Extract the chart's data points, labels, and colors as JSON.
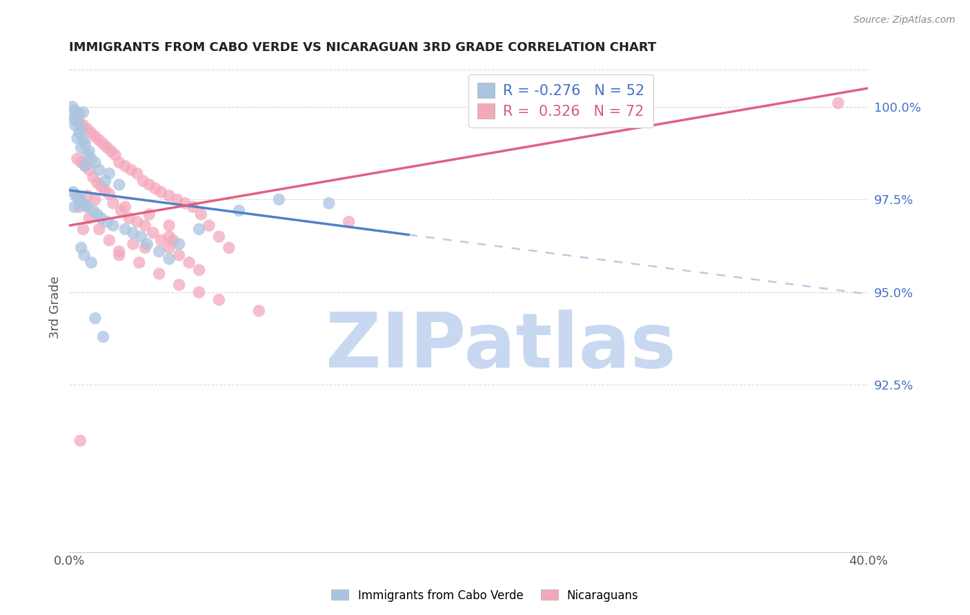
{
  "title": "IMMIGRANTS FROM CABO VERDE VS NICARAGUAN 3RD GRADE CORRELATION CHART",
  "source": "Source: ZipAtlas.com",
  "ylabel": "3rd Grade",
  "xmin": 0.0,
  "xmax": 40.0,
  "ymin": 88.0,
  "ymax": 101.2,
  "yticks": [
    92.5,
    95.0,
    97.5,
    100.0
  ],
  "ytick_labels": [
    "92.5%",
    "95.0%",
    "97.5%",
    "100.0%"
  ],
  "xticks": [
    0.0,
    5.0,
    10.0,
    15.0,
    20.0,
    25.0,
    30.0,
    35.0,
    40.0
  ],
  "xtick_labels": [
    "0.0%",
    "",
    "",
    "",
    "",
    "",
    "",
    "",
    "40.0%"
  ],
  "blue_R": -0.276,
  "blue_N": 52,
  "pink_R": 0.326,
  "pink_N": 72,
  "blue_color": "#aac4e0",
  "pink_color": "#f4a8bc",
  "blue_line_color": "#5080c8",
  "pink_line_color": "#e06080",
  "blue_dash_color": "#aac4e0",
  "blue_scatter_x": [
    0.15,
    0.3,
    0.5,
    0.7,
    0.2,
    0.4,
    0.3,
    0.6,
    0.5,
    0.4,
    0.7,
    0.8,
    0.6,
    1.0,
    0.9,
    1.1,
    1.3,
    0.8,
    1.5,
    2.0,
    1.8,
    2.5,
    0.2,
    0.35,
    0.45,
    0.55,
    0.5,
    0.65,
    0.8,
    0.9,
    1.2,
    1.4,
    1.6,
    1.9,
    2.2,
    2.8,
    3.2,
    3.6,
    3.9,
    4.5,
    5.0,
    5.5,
    6.5,
    8.5,
    10.5,
    13.0,
    0.25,
    0.6,
    0.75,
    1.1,
    1.3,
    1.7
  ],
  "blue_scatter_y": [
    100.0,
    99.9,
    99.8,
    99.85,
    99.7,
    99.6,
    99.5,
    99.4,
    99.3,
    99.15,
    99.1,
    99.0,
    98.9,
    98.8,
    98.7,
    98.6,
    98.5,
    98.4,
    98.3,
    98.2,
    98.0,
    97.9,
    97.7,
    97.6,
    97.55,
    97.5,
    97.45,
    97.4,
    97.35,
    97.3,
    97.2,
    97.1,
    97.0,
    96.9,
    96.8,
    96.7,
    96.6,
    96.5,
    96.3,
    96.1,
    95.9,
    96.3,
    96.7,
    97.2,
    97.5,
    97.4,
    97.3,
    96.2,
    96.0,
    95.8,
    94.3,
    93.8
  ],
  "pink_scatter_x": [
    0.3,
    0.5,
    0.7,
    0.9,
    1.1,
    1.3,
    1.5,
    1.7,
    1.9,
    2.1,
    2.3,
    2.5,
    2.8,
    3.1,
    3.4,
    3.7,
    4.0,
    4.3,
    4.6,
    5.0,
    5.4,
    5.8,
    6.2,
    6.6,
    0.4,
    0.6,
    0.8,
    1.0,
    1.2,
    1.4,
    1.6,
    1.8,
    2.0,
    2.2,
    2.6,
    3.0,
    3.4,
    3.8,
    4.2,
    4.6,
    5.0,
    5.5,
    6.0,
    6.5,
    7.0,
    7.5,
    8.0,
    0.5,
    1.0,
    1.5,
    2.0,
    2.5,
    3.5,
    4.5,
    5.5,
    6.5,
    7.5,
    9.5,
    14.0,
    5.0,
    2.5,
    3.8,
    5.2,
    4.0,
    2.8,
    3.2,
    0.7,
    1.3,
    0.9,
    0.55,
    38.5,
    5.0
  ],
  "pink_scatter_y": [
    99.7,
    99.6,
    99.5,
    99.4,
    99.3,
    99.2,
    99.1,
    99.0,
    98.9,
    98.8,
    98.7,
    98.5,
    98.4,
    98.3,
    98.2,
    98.0,
    97.9,
    97.8,
    97.7,
    97.6,
    97.5,
    97.4,
    97.3,
    97.1,
    98.6,
    98.5,
    98.4,
    98.3,
    98.1,
    97.95,
    97.85,
    97.75,
    97.65,
    97.4,
    97.2,
    97.0,
    96.9,
    96.8,
    96.6,
    96.4,
    96.2,
    96.0,
    95.8,
    95.6,
    96.8,
    96.5,
    96.2,
    97.3,
    97.0,
    96.7,
    96.4,
    96.1,
    95.8,
    95.5,
    95.2,
    95.0,
    94.8,
    94.5,
    96.9,
    96.5,
    96.0,
    96.2,
    96.4,
    97.1,
    97.3,
    96.3,
    96.7,
    97.5,
    97.6,
    91.0,
    100.1,
    96.8
  ],
  "watermark": "ZIPatlas",
  "watermark_color": "#c8d8f0",
  "legend_blue_label": "Immigrants from Cabo Verde",
  "legend_pink_label": "Nicaraguans",
  "background_color": "#ffffff",
  "grid_color": "#d8d8d8",
  "blue_line_x0": 0.0,
  "blue_line_y0": 97.75,
  "blue_line_x1": 17.0,
  "blue_line_y1": 96.55,
  "blue_dash_x0": 17.0,
  "blue_dash_y0": 96.55,
  "blue_dash_x1": 40.0,
  "blue_dash_y1": 94.95,
  "pink_line_x0": 0.0,
  "pink_line_y0": 96.8,
  "pink_line_x1": 40.0,
  "pink_line_y1": 100.5
}
